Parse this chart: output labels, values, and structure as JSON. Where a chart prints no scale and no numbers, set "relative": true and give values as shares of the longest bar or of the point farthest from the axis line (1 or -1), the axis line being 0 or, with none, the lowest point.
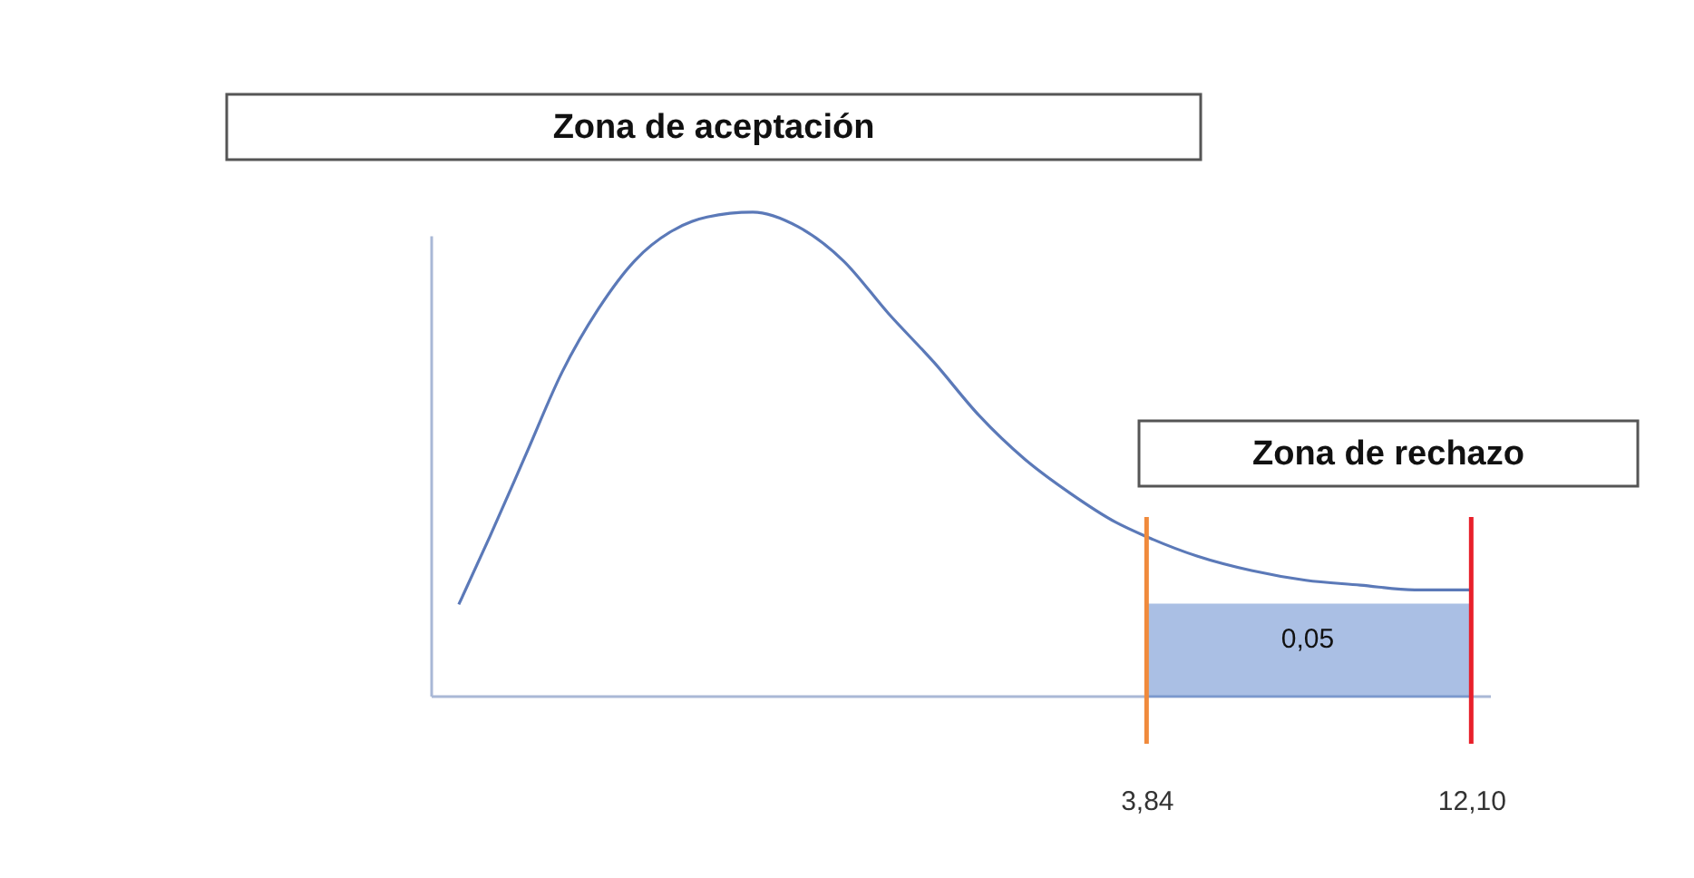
{
  "chart_data": {
    "type": "line",
    "relative": true,
    "annotations": [
      "Zona de aceptación",
      "Zona de rechazo",
      "0,05"
    ],
    "xlim": [
      -14.35,
      12.6
    ],
    "xticks": [
      {
        "value": 3.84,
        "label": "3,84"
      },
      {
        "value": 12.1,
        "label": "12,10"
      }
    ],
    "series": [
      {
        "color": "#5b79b8",
        "x": [
          -13.66,
          -12.87,
          -11.95,
          -11.03,
          -10.11,
          -9.18,
          -8.26,
          -7.34,
          -6.18,
          -5.03,
          -3.88,
          -2.72,
          -1.57,
          -0.42,
          0.74,
          1.89,
          3.05,
          3.84,
          5.12,
          6.51,
          7.89,
          9.28,
          10.66,
          12.1
        ],
        "values": [
          0.19,
          0.33,
          0.5,
          0.67,
          0.8,
          0.9,
          0.96,
          0.99,
          1.0,
          0.97,
          0.9,
          0.79,
          0.69,
          0.58,
          0.49,
          0.42,
          0.36,
          0.33,
          0.29,
          0.26,
          0.24,
          0.23,
          0.22,
          0.22
        ]
      },
      {
        "type": "area",
        "color": "#4472c4",
        "x": [
          3.84,
          12.1
        ],
        "values": [
          0.19,
          0.19
        ]
      }
    ],
    "ref_lines": [
      {
        "axis": "x",
        "value": 3.84,
        "color": "#f08a3c"
      },
      {
        "axis": "x",
        "value": 12.1,
        "color": "#e8202a"
      }
    ],
    "grid": false
  }
}
